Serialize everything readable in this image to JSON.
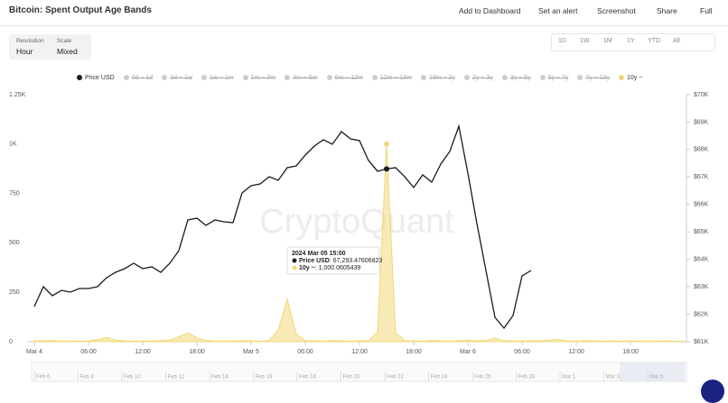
{
  "header": {
    "title": "Bitcoin: Spent Output Age Bands",
    "actions": [
      "Add to Dashboard",
      "Set an alert",
      "Screenshot",
      "Share",
      "Full"
    ]
  },
  "controls": {
    "resolution_label": "Resolution",
    "resolution": "Hour",
    "scale_label": "Scale",
    "scale": "Mixed",
    "ranges": [
      "1D",
      "1W",
      "1M",
      "1Y",
      "YTD",
      "All"
    ]
  },
  "watermark": "CryptoQuant",
  "chart_data": {
    "type": "line",
    "x": [
      0,
      1,
      2,
      3,
      4,
      5,
      6,
      7,
      8,
      9,
      10,
      11,
      12,
      13,
      14,
      15,
      16,
      17,
      18,
      19,
      20,
      21,
      22,
      23,
      24,
      25,
      26,
      27,
      28,
      29,
      30,
      31,
      32,
      33,
      34,
      35,
      36,
      37,
      38,
      39,
      40,
      41,
      42,
      43,
      44,
      45,
      46,
      47,
      48,
      49,
      50,
      51,
      52,
      53,
      54,
      55,
      56,
      57,
      58,
      59,
      60,
      61,
      62,
      63,
      64,
      65,
      66,
      67,
      68,
      69,
      70,
      71,
      72
    ],
    "xlim": [
      0,
      72.2
    ],
    "xticks": [
      {
        "value": 0,
        "label": "Mar 4"
      },
      {
        "value": 6,
        "label": "06:00"
      },
      {
        "value": 12,
        "label": "12:00"
      },
      {
        "value": 18,
        "label": "18:00"
      },
      {
        "value": 24,
        "label": "Mar 5"
      },
      {
        "value": 30,
        "label": "06:00"
      },
      {
        "value": 36,
        "label": "12:00"
      },
      {
        "value": 42,
        "label": "18:00"
      },
      {
        "value": 48,
        "label": "Mar 6"
      },
      {
        "value": 54,
        "label": "06:00"
      },
      {
        "value": 60,
        "label": "12:00"
      },
      {
        "value": 66,
        "label": "18:00"
      }
    ],
    "ylim": [
      0,
      1250
    ],
    "yticks": [
      0,
      250,
      500,
      750,
      {
        "value": 1000,
        "label": "1K"
      },
      {
        "value": 1250,
        "label": "1.25K"
      }
    ],
    "y2lim": [
      61000,
      70000
    ],
    "y2ticks": [
      {
        "value": 61000,
        "label": "$61K"
      },
      {
        "value": 62000,
        "label": "$62K"
      },
      {
        "value": 63000,
        "label": "$63K"
      },
      {
        "value": 64000,
        "label": "$64K"
      },
      {
        "value": 65000,
        "label": "$65K"
      },
      {
        "value": 66000,
        "label": "$66K"
      },
      {
        "value": 67000,
        "label": "$67K"
      },
      {
        "value": 68000,
        "label": "$68K"
      },
      {
        "value": 69000,
        "label": "$69K"
      },
      {
        "value": 70000,
        "label": "$70K"
      }
    ],
    "grid": false,
    "series": [
      {
        "name": "Price USD",
        "color": "#1a1a1a",
        "axis": "y2",
        "values": [
          62281,
          63004,
          62675,
          62872,
          62807,
          62938,
          62938,
          63004,
          63332,
          63529,
          63661,
          63858,
          63661,
          63727,
          63529,
          63858,
          64318,
          65435,
          65500,
          65238,
          65435,
          65369,
          65336,
          66420,
          66683,
          66749,
          67012,
          66880,
          67340,
          67406,
          67800,
          68128,
          68358,
          68194,
          68654,
          68391,
          68326,
          67603,
          67209,
          67293.48,
          67340,
          67012,
          66617,
          67077,
          66814,
          67471,
          67931,
          68851,
          67143,
          65303,
          63595,
          61887,
          61493,
          61953,
          63398,
          63595,
          null,
          null,
          null,
          null,
          null,
          null,
          null,
          null,
          null,
          null,
          null,
          null,
          null,
          null,
          null,
          null,
          null
        ]
      },
      {
        "name": "10y ~",
        "color": "#f0d879",
        "values": [
          5,
          4,
          6,
          3,
          4,
          3,
          4,
          10,
          22,
          8,
          4,
          3,
          4,
          3,
          5,
          8,
          25,
          45,
          20,
          6,
          3,
          4,
          3,
          5,
          4,
          3,
          6,
          60,
          215,
          40,
          5,
          4,
          3,
          6,
          4,
          3,
          5,
          4,
          50,
          1000,
          45,
          5,
          4,
          3,
          6,
          4,
          3,
          5,
          8,
          4,
          6,
          18,
          5,
          4,
          3,
          5,
          4,
          8,
          12,
          4,
          3,
          5,
          4,
          3,
          4,
          3,
          4,
          3,
          4,
          3,
          4,
          3,
          3
        ]
      }
    ],
    "hidden_series": [
      "0d ~ 1d",
      "1d ~ 1w",
      "1w ~ 1m",
      "1m ~ 3m",
      "3m ~ 6m",
      "6m ~ 12m",
      "12m ~ 18m",
      "18m ~ 2y",
      "2y ~ 3y",
      "3y ~ 5y",
      "5y ~ 7y",
      "7y ~ 10y"
    ],
    "tooltip": {
      "time": "2024 Mar 05 15:00",
      "price_label": "Price USD",
      "price": "67,293.47606823",
      "band_label": "10y ~",
      "band": "1,000.0605439"
    }
  },
  "navigator": {
    "labels": [
      "Feb 6",
      "Feb 8",
      "Feb 10",
      "Feb 12",
      "Feb 14",
      "Feb 16",
      "Feb 18",
      "Feb 20",
      "Feb 22",
      "Feb 24",
      "Feb 26",
      "Feb 28",
      "Mar 1",
      "Mar 3",
      "Mar 5"
    ]
  }
}
